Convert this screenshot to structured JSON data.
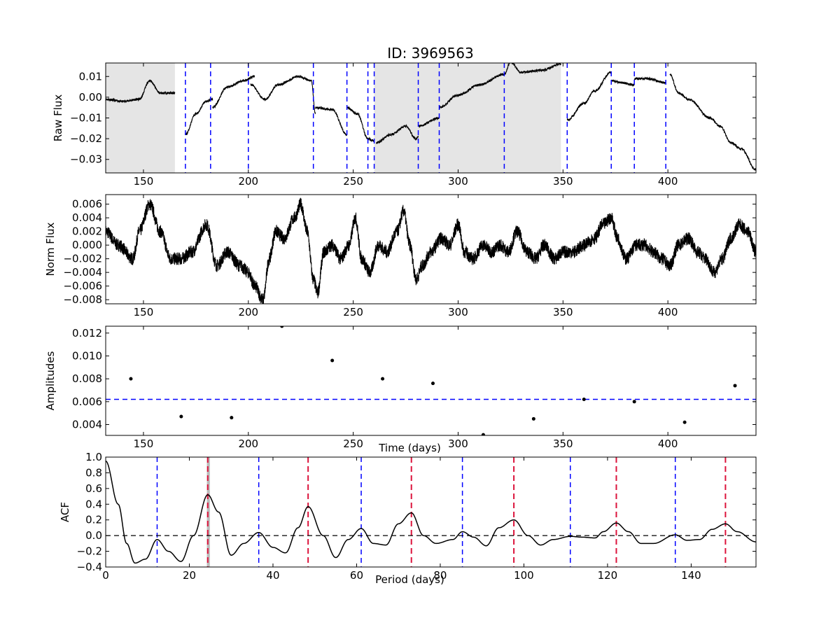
{
  "title": "ID: 3969563",
  "chart_data": [
    {
      "type": "line",
      "ylabel": "Raw Flux",
      "xlim": [
        132,
        442
      ],
      "ylim": [
        -0.0365,
        0.0165
      ],
      "xticks": [
        150,
        200,
        250,
        300,
        350,
        400
      ],
      "yticks": [
        0.01,
        0.0,
        -0.01,
        -0.02,
        -0.03
      ],
      "ytick_labels": [
        "0.01",
        "0.00",
        "−0.01",
        "−0.02",
        "−0.03"
      ],
      "shaded_x_ranges": [
        [
          132,
          165
        ],
        [
          260,
          349
        ]
      ],
      "quarter_boundaries_x": [
        170,
        182,
        200,
        231,
        247,
        257,
        260,
        281,
        291,
        322,
        352,
        373,
        384,
        399
      ],
      "segments": [
        {
          "x": [
            132,
            140,
            148,
            153,
            158,
            165
          ],
          "y": [
            -0.001,
            -0.002,
            -0.001,
            0.008,
            0.002,
            0.002
          ]
        },
        {
          "x": [
            170,
            175,
            180,
            183
          ],
          "y": [
            -0.018,
            -0.008,
            -0.002,
            -0.001
          ]
        },
        {
          "x": [
            183,
            190,
            198,
            203
          ],
          "y": [
            -0.005,
            0.005,
            0.008,
            0.01
          ]
        },
        {
          "x": [
            201,
            208,
            214,
            224,
            230,
            232
          ],
          "y": [
            0.006,
            -0.001,
            0.006,
            0.01,
            0.008,
            -0.008
          ]
        },
        {
          "x": [
            232,
            240,
            247
          ],
          "y": [
            -0.005,
            -0.006,
            -0.018
          ]
        },
        {
          "x": [
            247,
            252,
            257
          ],
          "y": [
            -0.005,
            -0.008,
            -0.02
          ]
        },
        {
          "x": [
            257,
            260
          ],
          "y": [
            -0.02,
            -0.021
          ]
        },
        {
          "x": [
            261,
            268,
            275,
            280,
            281
          ],
          "y": [
            -0.022,
            -0.018,
            -0.014,
            -0.02,
            -0.019
          ]
        },
        {
          "x": [
            281,
            291
          ],
          "y": [
            -0.014,
            -0.01
          ]
        },
        {
          "x": [
            291,
            300,
            310,
            322
          ],
          "y": [
            -0.005,
            0.001,
            0.006,
            0.011
          ]
        },
        {
          "x": [
            322,
            325,
            330,
            340,
            349
          ],
          "y": [
            0.011,
            0.017,
            0.012,
            0.013,
            0.016
          ]
        },
        {
          "x": [
            352,
            360,
            365,
            373
          ],
          "y": [
            -0.011,
            -0.003,
            0.003,
            0.012
          ]
        },
        {
          "x": [
            373,
            378,
            384
          ],
          "y": [
            0.008,
            0.007,
            0.006
          ]
        },
        {
          "x": [
            384,
            390,
            399
          ],
          "y": [
            0.009,
            0.009,
            0.007
          ]
        },
        {
          "x": [
            401,
            405,
            410,
            420,
            425,
            430,
            435,
            442
          ],
          "y": [
            0.011,
            0.002,
            -0.001,
            -0.01,
            -0.014,
            -0.022,
            -0.025,
            -0.035
          ]
        }
      ]
    },
    {
      "type": "line",
      "ylabel": "Norm Flux",
      "xlim": [
        132,
        442
      ],
      "ylim": [
        -0.0086,
        0.0074
      ],
      "xticks": [
        150,
        200,
        250,
        300,
        350,
        400
      ],
      "yticks": [
        0.006,
        0.004,
        0.002,
        0.0,
        -0.002,
        -0.004,
        -0.006,
        -0.008
      ],
      "ytick_labels": [
        "0.006",
        "0.004",
        "0.002",
        "0.000",
        "−0.002",
        "−0.004",
        "−0.006",
        "−0.008"
      ],
      "series": [
        {
          "x": [
            132,
            138,
            145,
            148,
            153,
            158,
            163,
            168,
            173,
            180,
            185,
            190,
            196,
            200,
            203,
            207,
            210,
            213,
            217,
            222,
            225,
            228,
            231,
            233,
            236,
            240,
            244,
            248,
            251,
            254,
            258,
            262,
            266,
            271,
            274,
            277,
            280,
            283,
            287,
            292,
            296,
            300,
            303,
            307,
            312,
            316,
            320,
            324,
            328,
            333,
            337,
            341,
            346,
            350,
            355,
            360,
            365,
            369,
            373,
            376,
            380,
            385,
            389,
            393,
            397,
            401,
            405,
            410,
            414,
            418,
            422,
            426,
            430,
            434,
            438,
            442
          ],
          "y": [
            0.002,
            0.0,
            -0.002,
            0.002,
            0.006,
            0.002,
            -0.002,
            -0.002,
            -0.001,
            0.003,
            -0.003,
            -0.001,
            -0.003,
            -0.004,
            -0.006,
            -0.008,
            -0.002,
            0.002,
            0.001,
            0.004,
            0.006,
            0.002,
            -0.005,
            -0.007,
            -0.001,
            0.0,
            -0.002,
            0.0,
            0.004,
            -0.002,
            -0.004,
            0.0,
            -0.001,
            0.002,
            0.005,
            0.0,
            -0.005,
            -0.003,
            -0.001,
            0.001,
            0.0,
            0.003,
            -0.001,
            -0.002,
            0.0,
            -0.001,
            0.0,
            -0.001,
            0.002,
            -0.001,
            -0.002,
            0.0,
            -0.002,
            -0.001,
            -0.001,
            0.0,
            0.001,
            0.003,
            0.004,
            0.001,
            -0.002,
            0.0,
            0.0,
            -0.001,
            -0.002,
            -0.003,
            0.0,
            0.001,
            -0.001,
            -0.002,
            -0.004,
            -0.002,
            0.001,
            0.003,
            0.002,
            -0.001
          ]
        }
      ]
    },
    {
      "type": "scatter",
      "ylabel": "Amplitudes",
      "xlabel": "Time (days)",
      "xlim": [
        132,
        442
      ],
      "ylim": [
        0.00305,
        0.0126
      ],
      "xticks": [
        150,
        200,
        250,
        300,
        350,
        400
      ],
      "yticks": [
        0.012,
        0.01,
        0.008,
        0.006,
        0.004
      ],
      "ytick_labels": [
        "0.012",
        "0.010",
        "0.008",
        "0.006",
        "0.004"
      ],
      "threshold_y": 0.0062,
      "points": {
        "x": [
          144,
          168,
          192,
          216,
          240,
          264,
          288,
          312,
          336,
          360,
          384,
          408,
          432
        ],
        "y": [
          0.008,
          0.0047,
          0.0046,
          0.0126,
          0.0096,
          0.008,
          0.0076,
          0.0031,
          0.0045,
          0.0062,
          0.006,
          0.0042,
          0.0074
        ]
      }
    },
    {
      "type": "line",
      "ylabel": "ACF",
      "xlabel": "Period (days)",
      "xlim": [
        0,
        155.5
      ],
      "ylim": [
        -0.4,
        1.0
      ],
      "xticks": [
        0,
        20,
        40,
        60,
        80,
        100,
        120,
        140
      ],
      "yticks": [
        1.0,
        0.8,
        0.6,
        0.4,
        0.2,
        0.0,
        -0.2,
        -0.4
      ],
      "ytick_labels": [
        "1.0",
        "0.8",
        "0.6",
        "0.4",
        "0.2",
        "0.0",
        "−0.2",
        "−0.4"
      ],
      "zero_line_y": 0.0,
      "shaded_x_range": [
        24.2,
        24.9
      ],
      "blue_lines_x": [
        12.3,
        36.6,
        61.1,
        85.3,
        111.1,
        136.2
      ],
      "red_lines_x": [
        24.4,
        48.4,
        73.1,
        97.6,
        122.1,
        148.2
      ],
      "series": [
        {
          "x": [
            0,
            3,
            5,
            7,
            9.5,
            12.3,
            15,
            18,
            21,
            24.4,
            27,
            30,
            33,
            36.6,
            40,
            43,
            46,
            48.4,
            52,
            55,
            58,
            61.1,
            64,
            67,
            70,
            73.1,
            76,
            79,
            83,
            85.3,
            88,
            91,
            94,
            97.6,
            101,
            104,
            107,
            111.1,
            114,
            117,
            119,
            122.1,
            125,
            128,
            131,
            136.2,
            139,
            142,
            145,
            148.2,
            151,
            155.5
          ],
          "y": [
            0.95,
            0.4,
            -0.1,
            -0.35,
            -0.3,
            -0.05,
            -0.2,
            -0.33,
            0.0,
            0.52,
            0.3,
            -0.25,
            -0.1,
            0.04,
            -0.15,
            -0.22,
            0.1,
            0.37,
            0.0,
            -0.28,
            -0.05,
            0.09,
            -0.1,
            -0.12,
            0.15,
            0.29,
            0.0,
            -0.1,
            -0.05,
            0.05,
            -0.02,
            -0.13,
            0.1,
            0.2,
            0.0,
            -0.12,
            -0.05,
            -0.01,
            -0.02,
            -0.03,
            0.05,
            0.16,
            0.05,
            -0.1,
            -0.1,
            0.01,
            -0.06,
            -0.05,
            0.08,
            0.15,
            0.05,
            -0.08
          ]
        }
      ]
    }
  ]
}
